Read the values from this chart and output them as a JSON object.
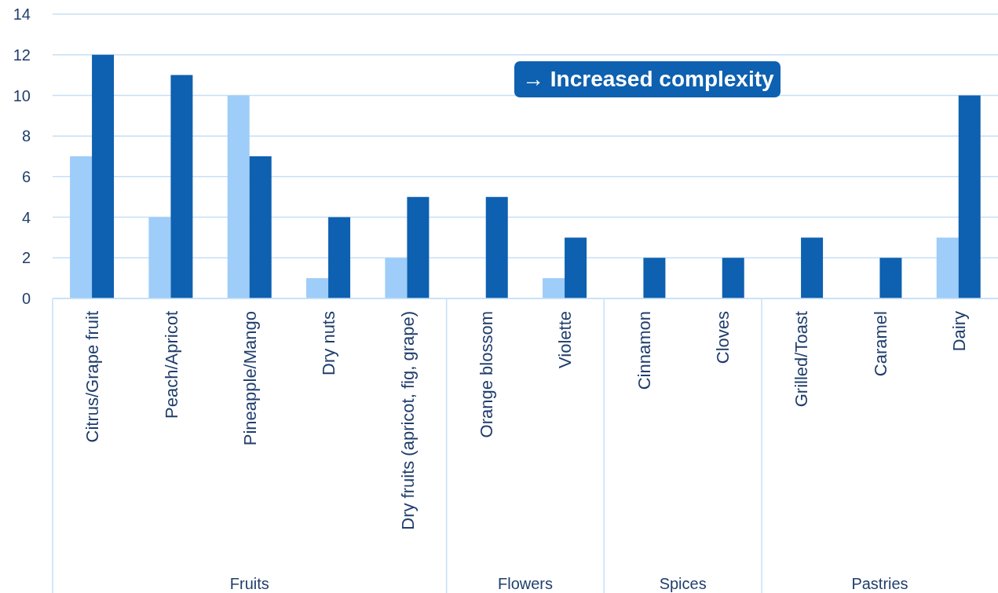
{
  "chart_data": {
    "type": "bar",
    "categories": [
      "Citrus/Grape fruit",
      "Peach/Apricot",
      "Pineapple/Mango",
      "Dry nuts",
      "Dry fruits (apricot, fig, grape)",
      "Orange blossom",
      "Violette",
      "Cinnamon",
      "Cloves",
      "Grilled/Toast",
      "Caramel",
      "Dairy"
    ],
    "series": [
      {
        "color": "#9dcdf8",
        "values": [
          7,
          4,
          10,
          1,
          2,
          0,
          1,
          0,
          0,
          0,
          0,
          3
        ]
      },
      {
        "color": "#0e60b0",
        "values": [
          12,
          11,
          7,
          4,
          5,
          5,
          3,
          2,
          2,
          3,
          2,
          10
        ]
      }
    ],
    "ylim": [
      0,
      14
    ],
    "yticks": [
      0,
      2,
      4,
      6,
      8,
      10,
      12,
      14
    ],
    "grid": "y",
    "annotations": [
      "→ Increased complexity",
      "Fruits",
      "Flowers",
      "Spices",
      "Pastries"
    ]
  }
}
